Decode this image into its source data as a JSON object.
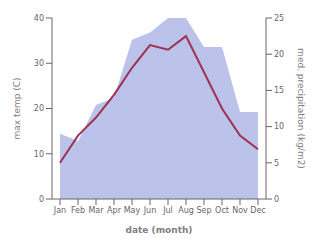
{
  "chart_data": {
    "type": "line",
    "categories": [
      "Jan",
      "Feb",
      "Mar",
      "Apr",
      "May",
      "Jun",
      "Jul",
      "Aug",
      "Sep",
      "Oct",
      "Nov",
      "Dec"
    ],
    "xlabel": "date (month)",
    "ylabel": "max temp (C)",
    "y2label": "med. precipitation (kg/m2)",
    "ylim": [
      0,
      40
    ],
    "yticks": [
      0,
      10,
      20,
      30,
      40
    ],
    "y2lim": [
      0,
      25
    ],
    "y2ticks": [
      0,
      5,
      10,
      15,
      20,
      25
    ],
    "series": [
      {
        "type": "area",
        "axis": "y2",
        "color": "#b0b8e8",
        "values": [
          9,
          8,
          13,
          14,
          22,
          23,
          25,
          25,
          21,
          21,
          12,
          12
        ]
      },
      {
        "type": "line",
        "color": "#a03050",
        "values": [
          8,
          14,
          18,
          23,
          29,
          34,
          33,
          36,
          28,
          20,
          14,
          11
        ]
      }
    ]
  }
}
